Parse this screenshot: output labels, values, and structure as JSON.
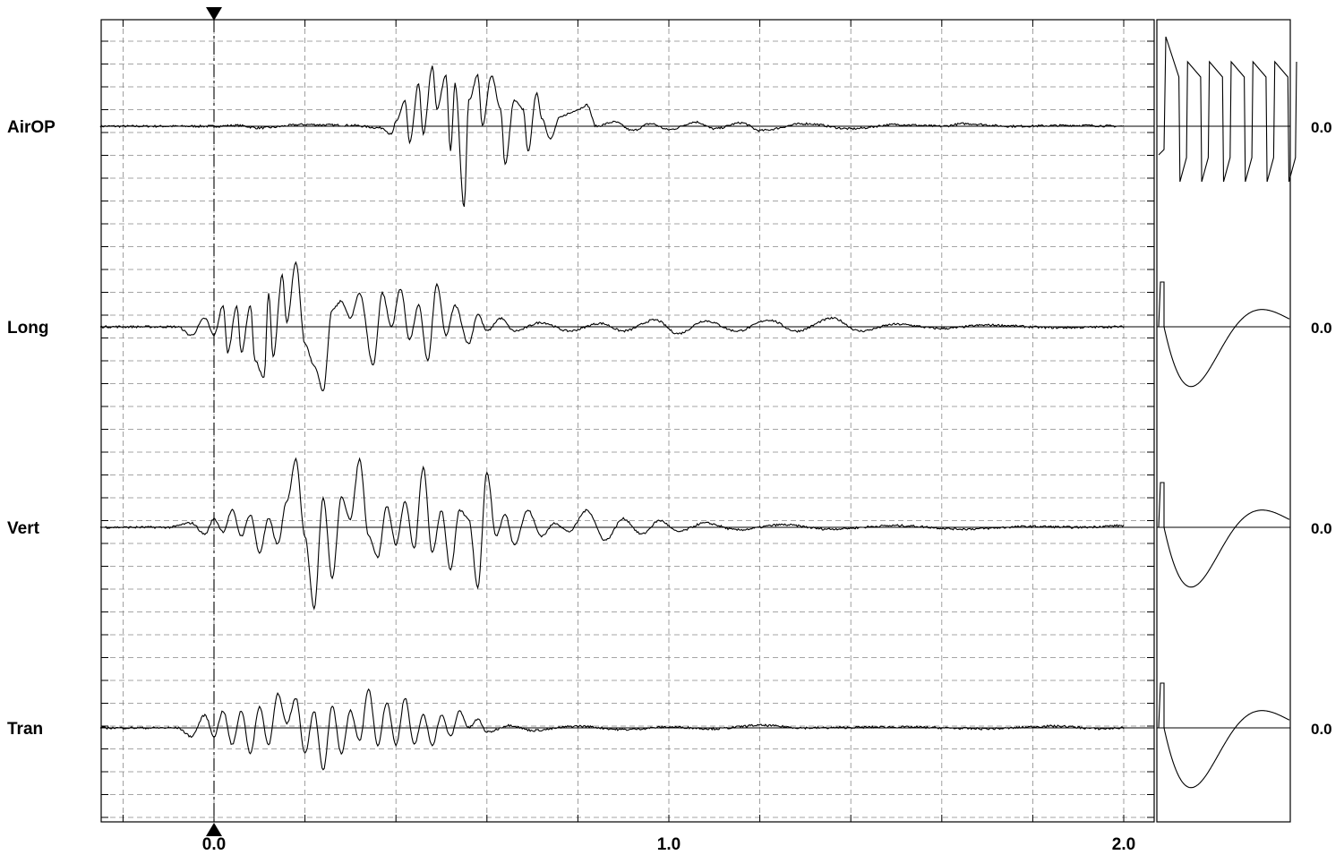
{
  "chart_data": {
    "type": "line",
    "x_range": [
      -0.25,
      2.05
    ],
    "x_ticks": [
      {
        "value": 0.0,
        "label": "0.0"
      },
      {
        "value": 1.0,
        "label": "1.0"
      },
      {
        "value": 2.0,
        "label": "2.0"
      }
    ],
    "trigger_time": 0.0,
    "grid": true,
    "channels": [
      {
        "name": "AirOP",
        "baseline_label": "0.0",
        "calibration": "square-wave",
        "waveform": [
          [
            -0.25,
            0
          ],
          [
            0,
            0
          ],
          [
            0.05,
            0.01
          ],
          [
            0.1,
            -0.02
          ],
          [
            0.2,
            0.02
          ],
          [
            0.3,
            0.01
          ],
          [
            0.37,
            -0.02
          ],
          [
            0.39,
            -0.1
          ],
          [
            0.4,
            0.05
          ],
          [
            0.42,
            0.3
          ],
          [
            0.43,
            -0.2
          ],
          [
            0.45,
            0.5
          ],
          [
            0.46,
            -0.1
          ],
          [
            0.48,
            0.7
          ],
          [
            0.49,
            0.2
          ],
          [
            0.51,
            0.6
          ],
          [
            0.52,
            -0.3
          ],
          [
            0.53,
            0.5
          ],
          [
            0.55,
            -0.95
          ],
          [
            0.56,
            0.3
          ],
          [
            0.58,
            0.6
          ],
          [
            0.59,
            0.0
          ],
          [
            0.61,
            0.6
          ],
          [
            0.63,
            0.2
          ],
          [
            0.64,
            -0.45
          ],
          [
            0.66,
            0.3
          ],
          [
            0.68,
            0.2
          ],
          [
            0.69,
            -0.3
          ],
          [
            0.71,
            0.4
          ],
          [
            0.72,
            0.1
          ],
          [
            0.74,
            -0.15
          ],
          [
            0.76,
            0.1
          ],
          [
            0.78,
            0.15
          ],
          [
            0.8,
            0.2
          ],
          [
            0.82,
            0.25
          ],
          [
            0.84,
            0.0
          ],
          [
            0.88,
            0.05
          ],
          [
            0.92,
            -0.05
          ],
          [
            0.96,
            0.03
          ],
          [
            1.0,
            -0.04
          ],
          [
            1.06,
            0.05
          ],
          [
            1.1,
            -0.03
          ],
          [
            1.16,
            0.04
          ],
          [
            1.2,
            -0.05
          ],
          [
            1.3,
            0.03
          ],
          [
            1.4,
            -0.03
          ],
          [
            1.5,
            0.02
          ],
          [
            1.6,
            0.0
          ],
          [
            1.65,
            0.03
          ],
          [
            1.75,
            0.0
          ],
          [
            1.9,
            0.01
          ],
          [
            2.0,
            0.0
          ]
        ]
      },
      {
        "name": "Long",
        "baseline_label": "0.0",
        "calibration": "damped-pulse",
        "waveform": [
          [
            -0.25,
            0
          ],
          [
            -0.08,
            0
          ],
          [
            -0.05,
            -0.1
          ],
          [
            -0.02,
            0.1
          ],
          [
            0,
            -0.1
          ],
          [
            0.02,
            0.25
          ],
          [
            0.03,
            -0.3
          ],
          [
            0.05,
            0.25
          ],
          [
            0.06,
            -0.3
          ],
          [
            0.08,
            0.25
          ],
          [
            0.09,
            -0.4
          ],
          [
            0.11,
            -0.6
          ],
          [
            0.12,
            0.4
          ],
          [
            0.13,
            -0.35
          ],
          [
            0.15,
            0.6
          ],
          [
            0.16,
            0.05
          ],
          [
            0.18,
            0.75
          ],
          [
            0.2,
            -0.2
          ],
          [
            0.22,
            -0.45
          ],
          [
            0.24,
            -0.75
          ],
          [
            0.26,
            0.2
          ],
          [
            0.28,
            0.3
          ],
          [
            0.3,
            0.1
          ],
          [
            0.32,
            0.4
          ],
          [
            0.35,
            -0.45
          ],
          [
            0.37,
            0.4
          ],
          [
            0.39,
            0.0
          ],
          [
            0.41,
            0.45
          ],
          [
            0.43,
            -0.15
          ],
          [
            0.45,
            0.25
          ],
          [
            0.47,
            -0.4
          ],
          [
            0.49,
            0.5
          ],
          [
            0.51,
            -0.1
          ],
          [
            0.53,
            0.25
          ],
          [
            0.56,
            -0.2
          ],
          [
            0.58,
            0.15
          ],
          [
            0.6,
            -0.05
          ],
          [
            0.63,
            0.1
          ],
          [
            0.66,
            -0.05
          ],
          [
            0.72,
            0.05
          ],
          [
            0.78,
            -0.05
          ],
          [
            0.85,
            0.04
          ],
          [
            0.9,
            -0.05
          ],
          [
            0.97,
            0.08
          ],
          [
            1.02,
            -0.08
          ],
          [
            1.08,
            0.07
          ],
          [
            1.15,
            -0.05
          ],
          [
            1.22,
            0.08
          ],
          [
            1.28,
            -0.05
          ],
          [
            1.36,
            0.1
          ],
          [
            1.42,
            -0.05
          ],
          [
            1.5,
            0.03
          ],
          [
            1.6,
            -0.02
          ],
          [
            1.7,
            0.02
          ],
          [
            1.85,
            -0.01
          ],
          [
            2.0,
            0
          ]
        ]
      },
      {
        "name": "Vert",
        "baseline_label": "0.0",
        "calibration": "damped-pulse",
        "waveform": [
          [
            -0.25,
            0
          ],
          [
            -0.1,
            0
          ],
          [
            -0.05,
            0.05
          ],
          [
            -0.02,
            -0.08
          ],
          [
            0,
            0.1
          ],
          [
            0.02,
            -0.05
          ],
          [
            0.04,
            0.2
          ],
          [
            0.06,
            -0.1
          ],
          [
            0.08,
            0.15
          ],
          [
            0.1,
            -0.3
          ],
          [
            0.12,
            0.1
          ],
          [
            0.14,
            -0.2
          ],
          [
            0.16,
            0.3
          ],
          [
            0.18,
            0.8
          ],
          [
            0.2,
            -0.1
          ],
          [
            0.22,
            -0.95
          ],
          [
            0.24,
            0.35
          ],
          [
            0.26,
            -0.6
          ],
          [
            0.28,
            0.35
          ],
          [
            0.3,
            0.1
          ],
          [
            0.32,
            0.8
          ],
          [
            0.34,
            -0.1
          ],
          [
            0.36,
            -0.35
          ],
          [
            0.38,
            0.25
          ],
          [
            0.4,
            -0.2
          ],
          [
            0.42,
            0.3
          ],
          [
            0.44,
            -0.25
          ],
          [
            0.46,
            0.7
          ],
          [
            0.48,
            -0.3
          ],
          [
            0.5,
            0.2
          ],
          [
            0.52,
            -0.5
          ],
          [
            0.54,
            0.2
          ],
          [
            0.56,
            0.1
          ],
          [
            0.58,
            -0.7
          ],
          [
            0.6,
            0.65
          ],
          [
            0.62,
            -0.1
          ],
          [
            0.64,
            0.15
          ],
          [
            0.66,
            -0.2
          ],
          [
            0.69,
            0.2
          ],
          [
            0.72,
            -0.1
          ],
          [
            0.75,
            0.05
          ],
          [
            0.78,
            -0.05
          ],
          [
            0.82,
            0.2
          ],
          [
            0.86,
            -0.15
          ],
          [
            0.9,
            0.1
          ],
          [
            0.94,
            -0.08
          ],
          [
            0.98,
            0.08
          ],
          [
            1.02,
            -0.05
          ],
          [
            1.08,
            0.05
          ],
          [
            1.15,
            -0.03
          ],
          [
            1.25,
            0.03
          ],
          [
            1.35,
            -0.02
          ],
          [
            1.5,
            0.02
          ],
          [
            1.65,
            -0.02
          ],
          [
            1.8,
            0.01
          ],
          [
            1.9,
            0
          ],
          [
            2.0,
            0.02
          ]
        ]
      },
      {
        "name": "Tran",
        "baseline_label": "0.0",
        "calibration": "damped-pulse",
        "waveform": [
          [
            -0.25,
            0
          ],
          [
            -0.08,
            0
          ],
          [
            -0.05,
            -0.1
          ],
          [
            -0.02,
            0.15
          ],
          [
            0,
            -0.1
          ],
          [
            0.02,
            0.2
          ],
          [
            0.04,
            -0.2
          ],
          [
            0.06,
            0.2
          ],
          [
            0.08,
            -0.3
          ],
          [
            0.1,
            0.25
          ],
          [
            0.12,
            -0.2
          ],
          [
            0.14,
            0.4
          ],
          [
            0.16,
            0.05
          ],
          [
            0.18,
            0.35
          ],
          [
            0.2,
            -0.3
          ],
          [
            0.22,
            0.2
          ],
          [
            0.24,
            -0.5
          ],
          [
            0.26,
            0.25
          ],
          [
            0.28,
            -0.3
          ],
          [
            0.3,
            0.2
          ],
          [
            0.32,
            -0.15
          ],
          [
            0.34,
            0.45
          ],
          [
            0.36,
            -0.2
          ],
          [
            0.38,
            0.3
          ],
          [
            0.4,
            -0.2
          ],
          [
            0.42,
            0.35
          ],
          [
            0.44,
            -0.2
          ],
          [
            0.46,
            0.15
          ],
          [
            0.48,
            -0.2
          ],
          [
            0.5,
            0.15
          ],
          [
            0.52,
            -0.1
          ],
          [
            0.54,
            0.2
          ],
          [
            0.56,
            0.0
          ],
          [
            0.58,
            0.1
          ],
          [
            0.6,
            -0.05
          ],
          [
            0.65,
            0.03
          ],
          [
            0.7,
            -0.03
          ],
          [
            0.8,
            0.02
          ],
          [
            0.9,
            -0.02
          ],
          [
            1.0,
            0.01
          ],
          [
            1.1,
            -0.01
          ],
          [
            1.2,
            0.03
          ],
          [
            1.3,
            0
          ],
          [
            1.5,
            0.01
          ],
          [
            1.7,
            -0.01
          ],
          [
            1.85,
            0.02
          ],
          [
            1.95,
            -0.01
          ],
          [
            2.0,
            0
          ]
        ]
      }
    ]
  }
}
